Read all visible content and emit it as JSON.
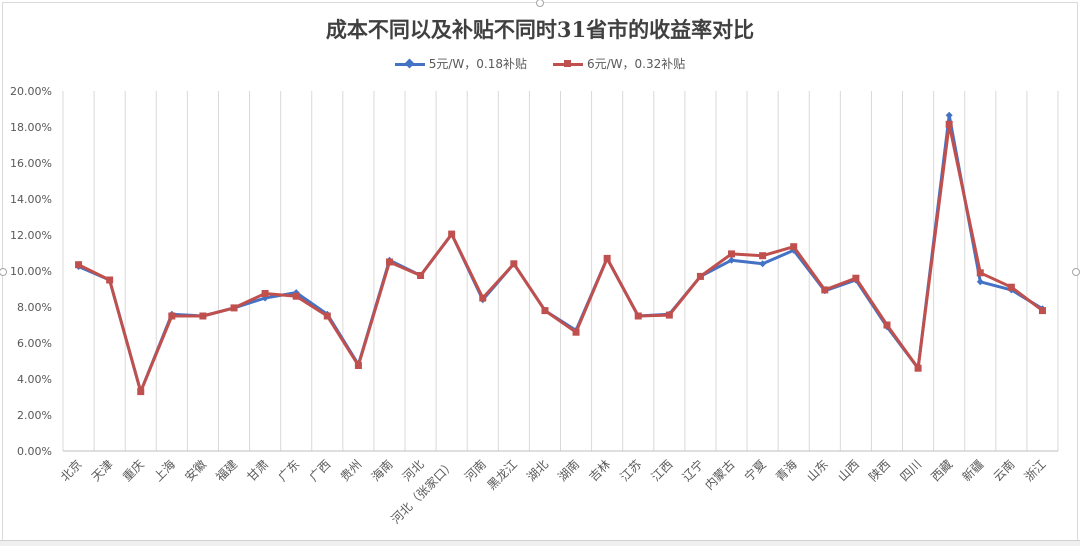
{
  "chart_data": {
    "type": "line",
    "title": "成本不同以及补贴不同时31省市的收益率对比",
    "categories": [
      "北京",
      "天津",
      "重庆",
      "上海",
      "安徽",
      "福建",
      "甘肃",
      "广东",
      "广西",
      "贵州",
      "海南",
      "河北",
      "河北（张家口）",
      "河南",
      "黑龙江",
      "湖北",
      "湖南",
      "吉林",
      "江苏",
      "江西",
      "辽宁",
      "内蒙古",
      "宁夏",
      "青海",
      "山东",
      "山西",
      "陕西",
      "四川",
      "西藏",
      "新疆",
      "云南",
      "浙江"
    ],
    "series": [
      {
        "name": "5元/W，0.18补贴",
        "color": "#4472C4",
        "marker": "diamond",
        "values": [
          10.25,
          9.5,
          3.3,
          7.6,
          7.5,
          7.95,
          8.5,
          8.8,
          7.6,
          4.8,
          10.6,
          9.75,
          12.05,
          8.4,
          10.4,
          7.8,
          6.7,
          10.7,
          7.5,
          7.6,
          9.7,
          10.6,
          10.4,
          11.15,
          8.9,
          9.5,
          6.9,
          4.6,
          18.65,
          9.4,
          8.95,
          7.9
        ]
      },
      {
        "name": "6元/W，0.32补贴",
        "color": "#C0504D",
        "marker": "square",
        "values": [
          10.35,
          9.5,
          3.3,
          7.5,
          7.5,
          7.95,
          8.75,
          8.6,
          7.5,
          4.75,
          10.5,
          9.75,
          12.05,
          8.5,
          10.4,
          7.8,
          6.6,
          10.7,
          7.5,
          7.55,
          9.7,
          10.95,
          10.85,
          11.35,
          8.95,
          9.6,
          7.0,
          4.6,
          18.15,
          9.9,
          9.1,
          7.8
        ]
      }
    ],
    "yticks": [
      "0.00%",
      "2.00%",
      "4.00%",
      "6.00%",
      "8.00%",
      "10.00%",
      "12.00%",
      "14.00%",
      "16.00%",
      "18.00%",
      "20.00%"
    ],
    "ylim": [
      0,
      20
    ],
    "xlabel": "",
    "ylabel": "",
    "grid": "vertical",
    "legend_position": "top"
  }
}
